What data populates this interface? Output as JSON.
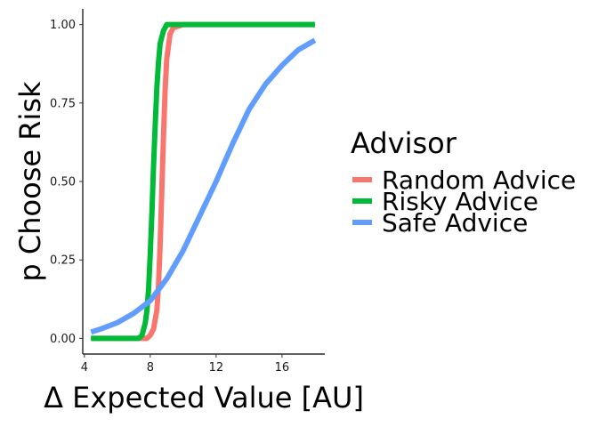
{
  "chart_data": {
    "type": "line",
    "xlabel": "Δ Expected Value [AU]",
    "ylabel": "p Choose Risk",
    "xlim": [
      3.9,
      18.6
    ],
    "ylim": [
      -0.05,
      1.05
    ],
    "xticks": [
      4,
      8,
      12,
      16
    ],
    "yticks": [
      0.0,
      0.25,
      0.5,
      0.75,
      1.0
    ],
    "ytick_labels": [
      "0.00",
      "0.25",
      "0.50",
      "0.75",
      "1.00"
    ],
    "grid": false,
    "legend": {
      "title": "Advisor",
      "position": "right"
    },
    "series": [
      {
        "name": "Random Advice",
        "color": "#F8766D",
        "x": [
          4.4,
          7.8,
          8.0,
          8.2,
          8.4,
          8.5,
          8.6,
          8.7,
          8.8,
          8.9,
          9.0,
          9.2,
          9.4,
          10.0,
          18.0
        ],
        "y": [
          0.0,
          0.0,
          0.01,
          0.03,
          0.09,
          0.17,
          0.3,
          0.47,
          0.64,
          0.79,
          0.89,
          0.97,
          0.99,
          1.0,
          1.0
        ]
      },
      {
        "name": "Risky Advice",
        "color": "#00BA38",
        "x": [
          4.4,
          7.3,
          7.5,
          7.7,
          7.8,
          7.9,
          8.0,
          8.1,
          8.2,
          8.3,
          8.4,
          8.5,
          8.6,
          8.8,
          9.0,
          18.0
        ],
        "y": [
          0.0,
          0.0,
          0.01,
          0.05,
          0.09,
          0.16,
          0.27,
          0.4,
          0.55,
          0.68,
          0.8,
          0.88,
          0.94,
          0.98,
          1.0,
          1.0
        ]
      },
      {
        "name": "Safe Advice",
        "color": "#619CFF",
        "x": [
          4.4,
          5,
          6,
          7,
          8,
          9,
          10,
          11,
          12,
          13,
          14,
          15,
          16,
          17,
          18
        ],
        "y": [
          0.02,
          0.03,
          0.05,
          0.08,
          0.12,
          0.19,
          0.28,
          0.39,
          0.5,
          0.62,
          0.73,
          0.81,
          0.87,
          0.92,
          0.95
        ]
      }
    ]
  }
}
